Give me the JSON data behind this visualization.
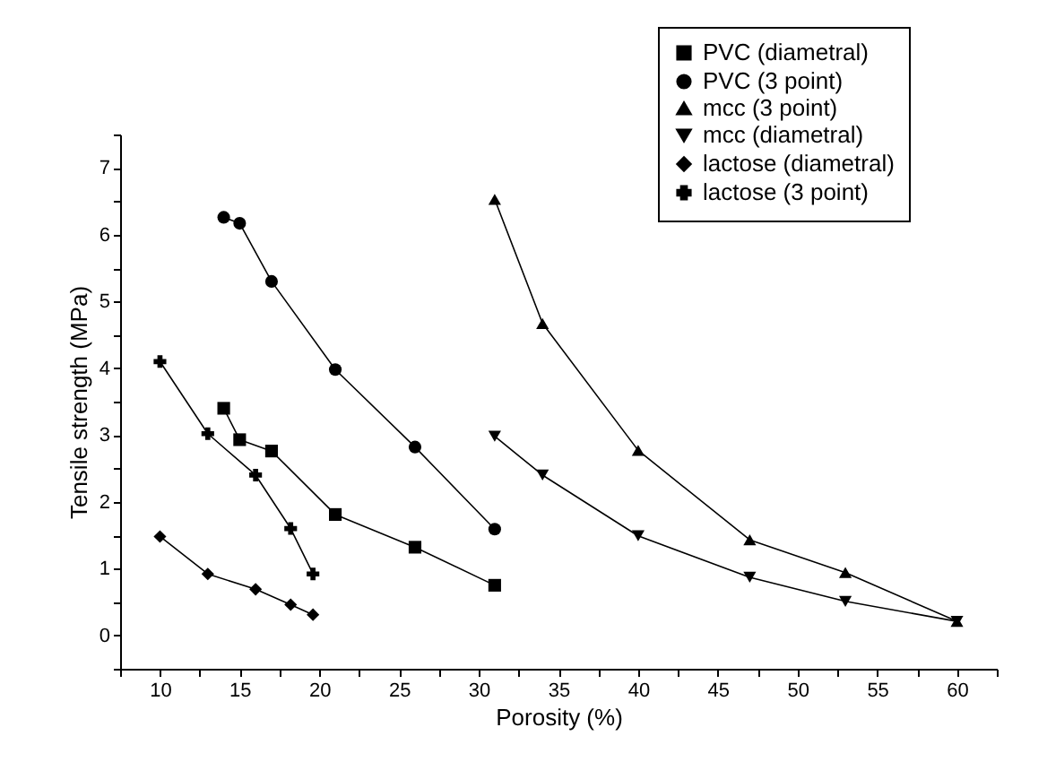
{
  "chart_data": {
    "type": "line",
    "xlabel": "Porosity (%)",
    "ylabel": "Tensile strength (MPa)",
    "xlim": [
      7.5,
      62.5
    ],
    "ylim": [
      -0.5,
      7.5
    ],
    "xticks": [
      {
        "value": 7.5,
        "label": null
      },
      10,
      {
        "value": 12.5,
        "label": null
      },
      15,
      {
        "value": 17.5,
        "label": null
      },
      20,
      {
        "value": 22.5,
        "label": null
      },
      25,
      {
        "value": 27.5,
        "label": null
      },
      30,
      {
        "value": 32.5,
        "label": null
      },
      35,
      {
        "value": 37.5,
        "label": null
      },
      40,
      {
        "value": 42.5,
        "label": null
      },
      45,
      {
        "value": 47.5,
        "label": null
      },
      50,
      {
        "value": 52.5,
        "label": null
      },
      55,
      {
        "value": 57.5,
        "label": null
      },
      60,
      {
        "value": 62.5,
        "label": null
      }
    ],
    "yticks": [
      {
        "value": -0.5,
        "label": null
      },
      0,
      {
        "value": 0.5,
        "label": null
      },
      1,
      {
        "value": 1.5,
        "label": null
      },
      2,
      {
        "value": 2.5,
        "label": null
      },
      3,
      {
        "value": 3.5,
        "label": null
      },
      4,
      {
        "value": 4.5,
        "label": null
      },
      5,
      {
        "value": 5.5,
        "label": null
      },
      6,
      {
        "value": 6.5,
        "label": null
      },
      7,
      {
        "value": 7.5,
        "label": null
      }
    ],
    "grid": false,
    "legend": "top right",
    "line_style": "solid",
    "series": [
      {
        "name": "PVC (diametral)",
        "color": "#000000",
        "marker": "square",
        "x": [
          14,
          15,
          17,
          21,
          26,
          31
        ],
        "values": [
          3.4,
          2.93,
          2.76,
          1.81,
          1.32,
          0.75
        ]
      },
      {
        "name": "PVC (3 point)",
        "color": "#000000",
        "marker": "circle",
        "x": [
          14,
          15,
          17,
          21,
          26,
          31
        ],
        "values": [
          6.26,
          6.17,
          5.3,
          3.98,
          2.82,
          1.59
        ]
      },
      {
        "name": "mcc (3 point)",
        "color": "#000000",
        "marker": "triangle",
        "x": [
          31,
          34,
          40,
          47,
          53,
          60
        ],
        "values": [
          6.53,
          4.67,
          2.77,
          1.43,
          0.94,
          0.21
        ]
      },
      {
        "name": "mcc (diametral)",
        "color": "#000000",
        "marker": "triangle-down",
        "x": [
          31,
          34,
          40,
          47,
          53,
          60
        ],
        "values": [
          2.98,
          2.4,
          1.49,
          0.87,
          0.51,
          0.21
        ]
      },
      {
        "name": "lactose (diametral)",
        "color": "#000000",
        "marker": "diamond",
        "x": [
          10,
          13,
          16,
          18.2,
          19.6
        ],
        "values": [
          1.48,
          0.92,
          0.69,
          0.46,
          0.31
        ]
      },
      {
        "name": "lactose (3 point)",
        "color": "#000000",
        "marker": "cross",
        "x": [
          10,
          13,
          16,
          18.2,
          19.6
        ],
        "values": [
          4.1,
          3.02,
          2.4,
          1.6,
          0.92
        ]
      }
    ]
  }
}
